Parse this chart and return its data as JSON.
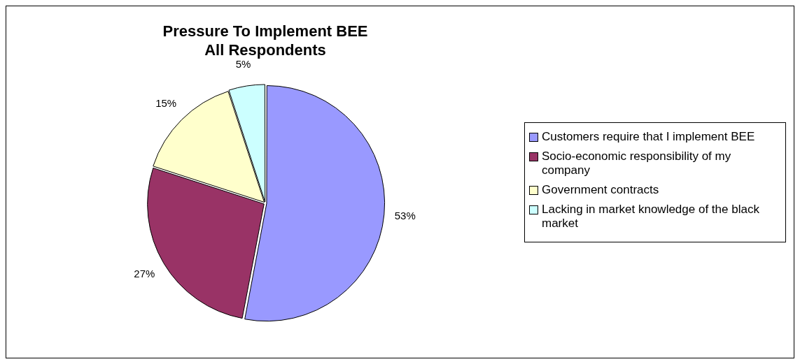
{
  "chart_data": {
    "type": "pie",
    "title": "Pressure To Implement BEE\nAll Respondents",
    "categories": [
      "Customers require that I implement BEE",
      "Socio-economic responsibility of my company",
      "Government contracts",
      "Lacking in market knowledge of the black market"
    ],
    "values": [
      53,
      27,
      15,
      5
    ],
    "value_labels": [
      "53%",
      "27%",
      "15%",
      "5%"
    ],
    "colors": [
      "#9999ff",
      "#993366",
      "#ffffcc",
      "#ccffff"
    ],
    "legend": "right"
  }
}
